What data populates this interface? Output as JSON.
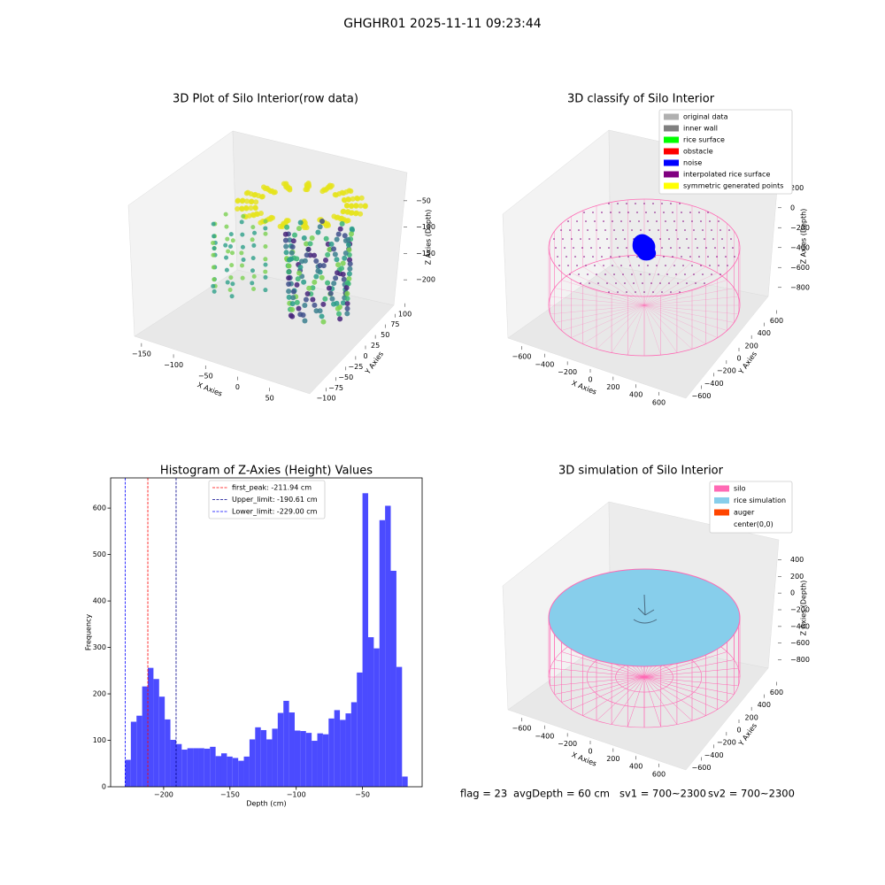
{
  "title": "GHGHR01 2025-11-11 09:23:44",
  "chart_data": [
    {
      "type": "scatter3d",
      "title": "3D Plot of Silo Interior(row data)",
      "xlabel": "X Axies",
      "ylabel": "Y Axies",
      "zlabel": "Z Axies (Depth)",
      "xlim": [
        -165,
        85
      ],
      "ylim": [
        -110,
        110
      ],
      "zlim": [
        -235,
        -15
      ],
      "xticks": [
        {
          "value": -150,
          "label": "−150"
        },
        {
          "value": -100,
          "label": "−100"
        },
        {
          "value": -50,
          "label": "−50"
        },
        0,
        50
      ],
      "yticks": [
        {
          "value": -100,
          "label": "−100"
        },
        {
          "value": -75,
          "label": "−75"
        },
        {
          "value": -50,
          "label": "−50"
        },
        {
          "value": -25,
          "label": "−25"
        },
        0,
        25,
        50,
        75,
        100
      ],
      "zticks": [
        {
          "value": -50,
          "label": "−50"
        },
        {
          "value": -100,
          "label": "−100"
        },
        {
          "value": -150,
          "label": "−150"
        },
        {
          "value": -200,
          "label": "−200"
        }
      ]
    },
    {
      "type": "scatter3d",
      "title": "3D classify of Silo Interior",
      "xlabel": "X Axies",
      "ylabel": "Y Axies",
      "zlabel": "Z Axies (Depth)",
      "xlim": [
        -720,
        720
      ],
      "ylim": [
        -720,
        720
      ],
      "zlim": [
        -900,
        300
      ],
      "xticks": [
        {
          "value": -600,
          "label": "−600"
        },
        {
          "value": -400,
          "label": "−400"
        },
        {
          "value": -200,
          "label": "−200"
        },
        0,
        200,
        400,
        600
      ],
      "yticks": [
        {
          "value": -600,
          "label": "−600"
        },
        {
          "value": -400,
          "label": "−400"
        },
        {
          "value": -200,
          "label": "−200"
        },
        0,
        200,
        400,
        600
      ],
      "zticks": [
        200,
        0,
        {
          "value": -200,
          "label": "−200"
        },
        {
          "value": -400,
          "label": "−400"
        },
        {
          "value": -600,
          "label": "−600"
        },
        {
          "value": -800,
          "label": "−800"
        }
      ],
      "legend": [
        {
          "name": "original data",
          "color": "#b0b0b0"
        },
        {
          "name": "inner wall",
          "color": "#808080"
        },
        {
          "name": "rice surface",
          "color": "#00ff00"
        },
        {
          "name": "obstacle",
          "color": "#ff0000"
        },
        {
          "name": "noise",
          "color": "#0000ff"
        },
        {
          "name": "interpolated rice surface",
          "color": "#800080"
        },
        {
          "name": "symmetric generated points",
          "color": "#ffff00"
        }
      ]
    },
    {
      "type": "histogram",
      "title": "Histogram of Z-Axies (Height) Values",
      "xlabel": "Depth (cm)",
      "ylabel": "Frequency",
      "color": "#4b4bff",
      "xlim": [
        -240,
        -5
      ],
      "ylim": [
        0,
        665
      ],
      "xticks": [
        {
          "value": -200,
          "label": "−200"
        },
        {
          "value": -150,
          "label": "−150"
        },
        {
          "value": -100,
          "label": "−100"
        },
        {
          "value": -50,
          "label": "−50"
        }
      ],
      "yticks": [
        0,
        100,
        200,
        300,
        400,
        500,
        600
      ],
      "bins": [
        -229.0,
        -224.74,
        -220.48,
        -216.21,
        -211.95,
        -207.69,
        -203.43,
        -199.17,
        -194.9,
        -190.64,
        -186.38,
        -182.12,
        -177.86,
        -173.59,
        -169.33,
        -165.07,
        -160.81,
        -156.55,
        -152.28,
        -148.02,
        -143.76,
        -139.5,
        -135.24,
        -130.97,
        -126.71,
        -122.45,
        -118.19,
        -113.93,
        -109.66,
        -105.4,
        -101.14,
        -96.88,
        -92.62,
        -88.35,
        -84.09,
        -79.83,
        -75.57,
        -71.31,
        -67.04,
        -62.78,
        -58.52,
        -54.26,
        -50.0,
        -45.73,
        -41.47,
        -37.21,
        -32.95,
        -28.69,
        -24.42,
        -20.16,
        -15.9
      ],
      "values": [
        58,
        140,
        153,
        216,
        256,
        232,
        194,
        145,
        101,
        92,
        80,
        83,
        83,
        83,
        82,
        86,
        66,
        72,
        65,
        62,
        56,
        65,
        102,
        128,
        122,
        102,
        125,
        159,
        185,
        160,
        121,
        120,
        116,
        99,
        115,
        113,
        147,
        165,
        144,
        158,
        182,
        246,
        632,
        322,
        298,
        574,
        605,
        465,
        258,
        22
      ],
      "vlines": [
        {
          "label": "first_peak: -211.94 cm",
          "value": -211.94,
          "color": "#ff0000"
        },
        {
          "label": "Upper_limit: -190.61 cm",
          "value": -190.61,
          "color": "#00008b"
        },
        {
          "label": "Lower_limit: -229.00 cm",
          "value": -229.0,
          "color": "#0000ff"
        }
      ]
    },
    {
      "type": "scatter3d",
      "title": "3D simulation of Silo Interior",
      "xlabel": "X Axies",
      "ylabel": "Y Axies",
      "zlabel": "Z Axies (Depth)",
      "xlim": [
        -720,
        720
      ],
      "ylim": [
        -720,
        720
      ],
      "zlim": [
        -900,
        500
      ],
      "xticks": [
        {
          "value": -600,
          "label": "−600"
        },
        {
          "value": -400,
          "label": "−400"
        },
        {
          "value": -200,
          "label": "−200"
        },
        0,
        200,
        400,
        600
      ],
      "yticks": [
        {
          "value": -600,
          "label": "−600"
        },
        {
          "value": -400,
          "label": "−400"
        },
        {
          "value": -200,
          "label": "−200"
        },
        0,
        200,
        400,
        600
      ],
      "zticks": [
        400,
        200,
        0,
        {
          "value": -200,
          "label": "−200"
        },
        {
          "value": -400,
          "label": "−400"
        },
        {
          "value": -600,
          "label": "−600"
        },
        {
          "value": -800,
          "label": "−800"
        }
      ],
      "legend": [
        {
          "name": "silo",
          "color": "#ff69b4"
        },
        {
          "name": "rice simulation",
          "color": "#87ceeb"
        },
        {
          "name": "auger",
          "color": "#ff4500"
        },
        {
          "name": "center(0,0)"
        }
      ]
    }
  ],
  "footer": [
    "flag = 23",
    "avgDepth = 60 cm",
    "sv1 = 700~2300",
    "sv2 = 700~2300"
  ]
}
